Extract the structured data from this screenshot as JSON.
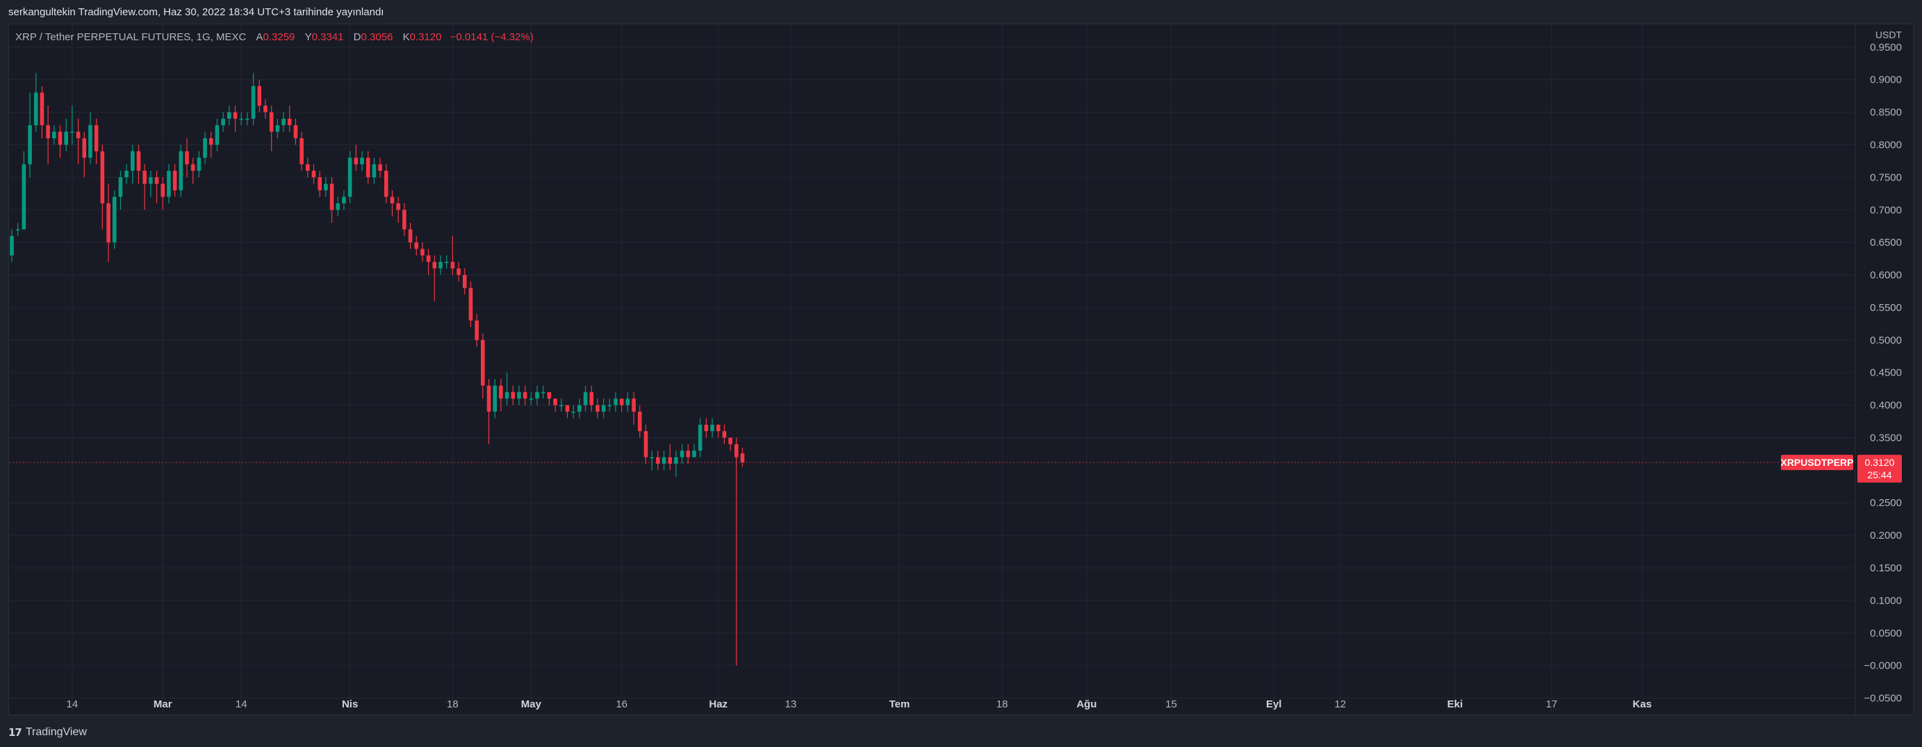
{
  "header": {
    "publisher_line": "serkangultekin TradingView.com, Haz 30, 2022 18:34 UTC+3 tarihinde yayınlandı"
  },
  "legend": {
    "symbol": "XRP / Tether PERPETUAL FUTURES, 1G, MEXC",
    "open_label": "A",
    "open_value": "0.3259",
    "high_label": "Y",
    "high_value": "0.3341",
    "low_label": "D",
    "low_value": "0.3056",
    "close_label": "K",
    "close_value": "0.3120",
    "change": "−0.0141 (−4.32%)"
  },
  "price_tag": {
    "symbol": "XRPUSDTPERP",
    "price": "0.3120",
    "countdown": "25:44"
  },
  "footer": {
    "logo": "17",
    "brand": "TradingView"
  },
  "colors": {
    "up": "#089981",
    "down": "#f23645",
    "background": "#181b25",
    "grid": "#232735",
    "axis_text": "#b2b5be"
  },
  "chart_data": {
    "type": "candlestick",
    "axis_unit_label": "USDT",
    "ylim": [
      -0.075,
      0.985
    ],
    "y_ticks": [
      "0.9500",
      "0.9000",
      "0.8500",
      "0.8000",
      "0.7500",
      "0.7000",
      "0.6500",
      "0.6000",
      "0.5500",
      "0.5000",
      "0.4500",
      "0.4000",
      "0.3500",
      "0.2500",
      "0.2000",
      "0.1500",
      "0.1000",
      "0.0500",
      "−0.0000",
      "−0.0500"
    ],
    "y_tick_values": [
      0.95,
      0.9,
      0.85,
      0.8,
      0.75,
      0.7,
      0.65,
      0.6,
      0.55,
      0.5,
      0.45,
      0.4,
      0.35,
      0.25,
      0.2,
      0.15,
      0.1,
      0.05,
      0.0,
      -0.05
    ],
    "x_ticks": [
      "14",
      "Mar",
      "14",
      "Nis",
      "18",
      "May",
      "16",
      "Haz",
      "13",
      "Tem",
      "18",
      "Ağu",
      "15",
      "Eyl",
      "12",
      "Eki",
      "17",
      "Kas"
    ],
    "x_tick_bold": [
      false,
      true,
      false,
      true,
      false,
      true,
      false,
      true,
      false,
      true,
      false,
      true,
      false,
      true,
      false,
      true,
      false,
      true
    ],
    "x_tick_dates": [
      "2022-02-14",
      "2022-03-01",
      "2022-03-14",
      "2022-04-01",
      "2022-04-18",
      "2022-05-01",
      "2022-05-16",
      "2022-06-01",
      "2022-06-13",
      "2022-07-01",
      "2022-07-18",
      "2022-08-01",
      "2022-08-15",
      "2022-09-01",
      "2022-09-12",
      "2022-10-01",
      "2022-10-17",
      "2022-11-01"
    ],
    "first_date": "2022-02-04",
    "last_price_line": 0.312,
    "candles": [
      [
        0.63,
        0.66,
        0.62,
        0.67
      ],
      [
        0.67,
        0.67,
        0.66,
        0.68
      ],
      [
        0.67,
        0.77,
        0.67,
        0.79
      ],
      [
        0.77,
        0.83,
        0.75,
        0.88
      ],
      [
        0.83,
        0.88,
        0.82,
        0.91
      ],
      [
        0.88,
        0.83,
        0.81,
        0.89
      ],
      [
        0.83,
        0.81,
        0.77,
        0.86
      ],
      [
        0.81,
        0.82,
        0.8,
        0.83
      ],
      [
        0.82,
        0.8,
        0.78,
        0.83
      ],
      [
        0.8,
        0.82,
        0.79,
        0.84
      ],
      [
        0.82,
        0.82,
        0.8,
        0.86
      ],
      [
        0.82,
        0.81,
        0.77,
        0.84
      ],
      [
        0.81,
        0.78,
        0.75,
        0.82
      ],
      [
        0.78,
        0.83,
        0.77,
        0.85
      ],
      [
        0.83,
        0.79,
        0.77,
        0.84
      ],
      [
        0.79,
        0.71,
        0.67,
        0.8
      ],
      [
        0.71,
        0.65,
        0.62,
        0.74
      ],
      [
        0.65,
        0.72,
        0.64,
        0.73
      ],
      [
        0.72,
        0.75,
        0.7,
        0.76
      ],
      [
        0.75,
        0.76,
        0.74,
        0.77
      ],
      [
        0.76,
        0.79,
        0.74,
        0.8
      ],
      [
        0.79,
        0.76,
        0.74,
        0.8
      ],
      [
        0.76,
        0.74,
        0.7,
        0.77
      ],
      [
        0.74,
        0.75,
        0.72,
        0.76
      ],
      [
        0.75,
        0.74,
        0.71,
        0.76
      ],
      [
        0.74,
        0.72,
        0.7,
        0.75
      ],
      [
        0.72,
        0.76,
        0.71,
        0.77
      ],
      [
        0.76,
        0.73,
        0.72,
        0.77
      ],
      [
        0.73,
        0.79,
        0.72,
        0.8
      ],
      [
        0.79,
        0.77,
        0.75,
        0.81
      ],
      [
        0.77,
        0.76,
        0.74,
        0.78
      ],
      [
        0.76,
        0.78,
        0.75,
        0.79
      ],
      [
        0.78,
        0.81,
        0.77,
        0.82
      ],
      [
        0.81,
        0.8,
        0.78,
        0.82
      ],
      [
        0.8,
        0.83,
        0.79,
        0.84
      ],
      [
        0.83,
        0.84,
        0.82,
        0.85
      ],
      [
        0.84,
        0.85,
        0.83,
        0.86
      ],
      [
        0.85,
        0.84,
        0.82,
        0.86
      ],
      [
        0.84,
        0.84,
        0.83,
        0.85
      ],
      [
        0.84,
        0.84,
        0.83,
        0.85
      ],
      [
        0.84,
        0.89,
        0.83,
        0.91
      ],
      [
        0.89,
        0.86,
        0.85,
        0.9
      ],
      [
        0.86,
        0.85,
        0.84,
        0.87
      ],
      [
        0.85,
        0.82,
        0.79,
        0.86
      ],
      [
        0.82,
        0.83,
        0.81,
        0.84
      ],
      [
        0.83,
        0.84,
        0.82,
        0.85
      ],
      [
        0.84,
        0.83,
        0.82,
        0.86
      ],
      [
        0.83,
        0.81,
        0.8,
        0.84
      ],
      [
        0.81,
        0.77,
        0.76,
        0.82
      ],
      [
        0.77,
        0.76,
        0.75,
        0.78
      ],
      [
        0.76,
        0.75,
        0.74,
        0.77
      ],
      [
        0.75,
        0.73,
        0.72,
        0.76
      ],
      [
        0.73,
        0.74,
        0.72,
        0.75
      ],
      [
        0.74,
        0.7,
        0.68,
        0.75
      ],
      [
        0.7,
        0.71,
        0.69,
        0.72
      ],
      [
        0.71,
        0.72,
        0.7,
        0.73
      ],
      [
        0.72,
        0.78,
        0.71,
        0.79
      ],
      [
        0.78,
        0.77,
        0.76,
        0.8
      ],
      [
        0.77,
        0.78,
        0.76,
        0.79
      ],
      [
        0.78,
        0.75,
        0.74,
        0.79
      ],
      [
        0.75,
        0.77,
        0.74,
        0.78
      ],
      [
        0.77,
        0.76,
        0.75,
        0.78
      ],
      [
        0.76,
        0.72,
        0.71,
        0.77
      ],
      [
        0.72,
        0.71,
        0.69,
        0.73
      ],
      [
        0.71,
        0.7,
        0.68,
        0.72
      ],
      [
        0.7,
        0.67,
        0.66,
        0.71
      ],
      [
        0.67,
        0.65,
        0.64,
        0.68
      ],
      [
        0.65,
        0.64,
        0.63,
        0.66
      ],
      [
        0.64,
        0.63,
        0.62,
        0.65
      ],
      [
        0.63,
        0.62,
        0.6,
        0.64
      ],
      [
        0.62,
        0.61,
        0.56,
        0.63
      ],
      [
        0.61,
        0.62,
        0.6,
        0.63
      ],
      [
        0.62,
        0.62,
        0.61,
        0.63
      ],
      [
        0.62,
        0.61,
        0.6,
        0.66
      ],
      [
        0.61,
        0.6,
        0.59,
        0.62
      ],
      [
        0.6,
        0.58,
        0.57,
        0.61
      ],
      [
        0.58,
        0.53,
        0.52,
        0.59
      ],
      [
        0.53,
        0.5,
        0.49,
        0.54
      ],
      [
        0.5,
        0.43,
        0.41,
        0.51
      ],
      [
        0.43,
        0.39,
        0.34,
        0.44
      ],
      [
        0.39,
        0.43,
        0.38,
        0.44
      ],
      [
        0.43,
        0.41,
        0.39,
        0.44
      ],
      [
        0.41,
        0.42,
        0.4,
        0.45
      ],
      [
        0.42,
        0.41,
        0.4,
        0.43
      ],
      [
        0.41,
        0.42,
        0.4,
        0.43
      ],
      [
        0.42,
        0.41,
        0.4,
        0.43
      ],
      [
        0.41,
        0.41,
        0.4,
        0.42
      ],
      [
        0.41,
        0.42,
        0.4,
        0.43
      ],
      [
        0.42,
        0.42,
        0.41,
        0.43
      ],
      [
        0.42,
        0.41,
        0.4,
        0.42
      ],
      [
        0.41,
        0.4,
        0.39,
        0.41
      ],
      [
        0.4,
        0.4,
        0.39,
        0.41
      ],
      [
        0.4,
        0.39,
        0.38,
        0.4
      ],
      [
        0.39,
        0.39,
        0.38,
        0.4
      ],
      [
        0.39,
        0.4,
        0.38,
        0.41
      ],
      [
        0.4,
        0.42,
        0.39,
        0.43
      ],
      [
        0.42,
        0.4,
        0.39,
        0.43
      ],
      [
        0.4,
        0.39,
        0.38,
        0.41
      ],
      [
        0.39,
        0.4,
        0.38,
        0.41
      ],
      [
        0.4,
        0.4,
        0.39,
        0.41
      ],
      [
        0.4,
        0.41,
        0.39,
        0.42
      ],
      [
        0.41,
        0.4,
        0.39,
        0.41
      ],
      [
        0.4,
        0.41,
        0.39,
        0.42
      ],
      [
        0.41,
        0.39,
        0.37,
        0.42
      ],
      [
        0.39,
        0.36,
        0.35,
        0.4
      ],
      [
        0.36,
        0.32,
        0.31,
        0.37
      ],
      [
        0.32,
        0.32,
        0.3,
        0.33
      ],
      [
        0.32,
        0.31,
        0.3,
        0.33
      ],
      [
        0.31,
        0.32,
        0.3,
        0.33
      ],
      [
        0.32,
        0.31,
        0.3,
        0.34
      ],
      [
        0.31,
        0.32,
        0.29,
        0.33
      ],
      [
        0.32,
        0.33,
        0.31,
        0.34
      ],
      [
        0.33,
        0.32,
        0.31,
        0.34
      ],
      [
        0.32,
        0.33,
        0.32,
        0.34
      ],
      [
        0.33,
        0.37,
        0.32,
        0.38
      ],
      [
        0.37,
        0.36,
        0.35,
        0.38
      ],
      [
        0.36,
        0.37,
        0.35,
        0.38
      ],
      [
        0.37,
        0.36,
        0.35,
        0.37
      ],
      [
        0.36,
        0.35,
        0.34,
        0.37
      ],
      [
        0.35,
        0.34,
        0.33,
        0.35
      ],
      [
        0.34,
        0.32,
        0.0,
        0.35
      ],
      [
        0.3259,
        0.312,
        0.3056,
        0.3341
      ]
    ]
  }
}
